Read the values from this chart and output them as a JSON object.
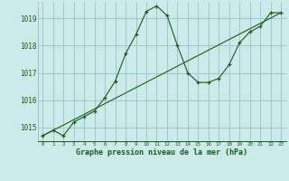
{
  "title": "Graphe pression niveau de la mer (hPa)",
  "bg_color": "#cceaea",
  "grid_color": "#99cccc",
  "line_color": "#1a5c1a",
  "marker_color": "#1a5c1a",
  "ylim": [
    1014.5,
    1019.6
  ],
  "yticks": [
    1015,
    1016,
    1017,
    1018,
    1019
  ],
  "xlim": [
    -0.5,
    23.5
  ],
  "xticks": [
    0,
    1,
    2,
    3,
    4,
    5,
    6,
    7,
    8,
    9,
    10,
    11,
    12,
    13,
    14,
    15,
    16,
    17,
    18,
    19,
    20,
    21,
    22,
    23
  ],
  "series1_x": [
    0,
    1,
    2,
    3,
    4,
    5,
    6,
    7,
    8,
    9,
    10,
    11,
    12,
    13,
    14,
    15,
    16,
    17,
    18,
    19,
    20,
    21,
    22,
    23
  ],
  "series1_y": [
    1014.7,
    1014.9,
    1014.7,
    1015.2,
    1015.4,
    1015.6,
    1016.1,
    1016.7,
    1017.7,
    1018.4,
    1019.25,
    1019.45,
    1019.1,
    1018.0,
    1017.0,
    1016.65,
    1016.65,
    1016.8,
    1017.3,
    1018.1,
    1018.5,
    1018.7,
    1019.2,
    1019.2
  ],
  "series2_x": [
    0,
    23
  ],
  "series2_y": [
    1014.7,
    1019.2
  ]
}
